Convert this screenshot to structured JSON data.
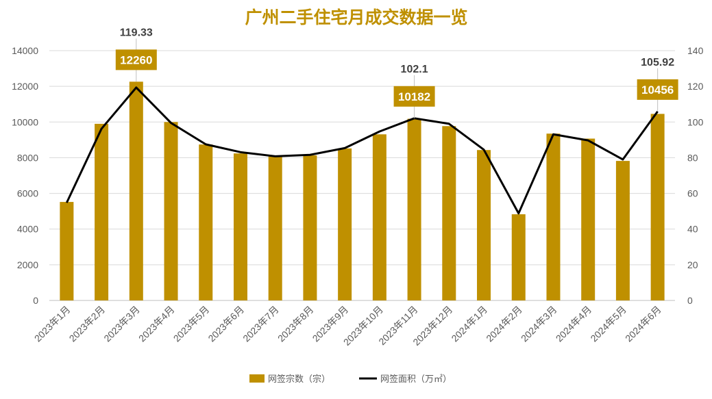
{
  "chart_data": {
    "type": "bar+line",
    "title": "广州二手住宅月成交数据一览",
    "categories": [
      "2023年1月",
      "2023年2月",
      "2023年3月",
      "2023年4月",
      "2023年5月",
      "2023年6月",
      "2023年7月",
      "2023年8月",
      "2023年9月",
      "2023年10月",
      "2023年11月",
      "2023年12月",
      "2024年1月",
      "2024年2月",
      "2024年3月",
      "2024年4月",
      "2024年5月",
      "2024年6月"
    ],
    "series": [
      {
        "name": "网签宗数（宗）",
        "type": "bar",
        "axis": "left",
        "color": "#BF9000",
        "values": [
          5520,
          9900,
          12260,
          10000,
          8740,
          8240,
          8070,
          8130,
          8520,
          9310,
          10182,
          9770,
          8430,
          4830,
          9350,
          9070,
          7820,
          10456
        ]
      },
      {
        "name": "网签面积（万㎡）",
        "type": "line",
        "axis": "right",
        "color": "#000000",
        "values": [
          54.8,
          96.2,
          119.33,
          99.5,
          87.5,
          83.1,
          80.8,
          81.6,
          85.4,
          94.7,
          102.1,
          99.0,
          84.5,
          48.8,
          93.1,
          89.7,
          79.0,
          105.92
        ]
      }
    ],
    "annotations": [
      {
        "index": 2,
        "bar_label": "12260",
        "line_label": "119.33"
      },
      {
        "index": 10,
        "bar_label": "10182",
        "line_label": "102.1"
      },
      {
        "index": 17,
        "bar_label": "10456",
        "line_label": "105.92"
      }
    ],
    "y_left": {
      "min": 0,
      "max": 14000,
      "ticks": [
        "0",
        "2000",
        "4000",
        "6000",
        "8000",
        "10000",
        "12000",
        "14000"
      ]
    },
    "y_right": {
      "min": 0,
      "max": 140,
      "ticks": [
        "0",
        "20",
        "40",
        "60",
        "80",
        "100",
        "120",
        "140"
      ]
    },
    "grid": true,
    "legend": "bottom"
  }
}
